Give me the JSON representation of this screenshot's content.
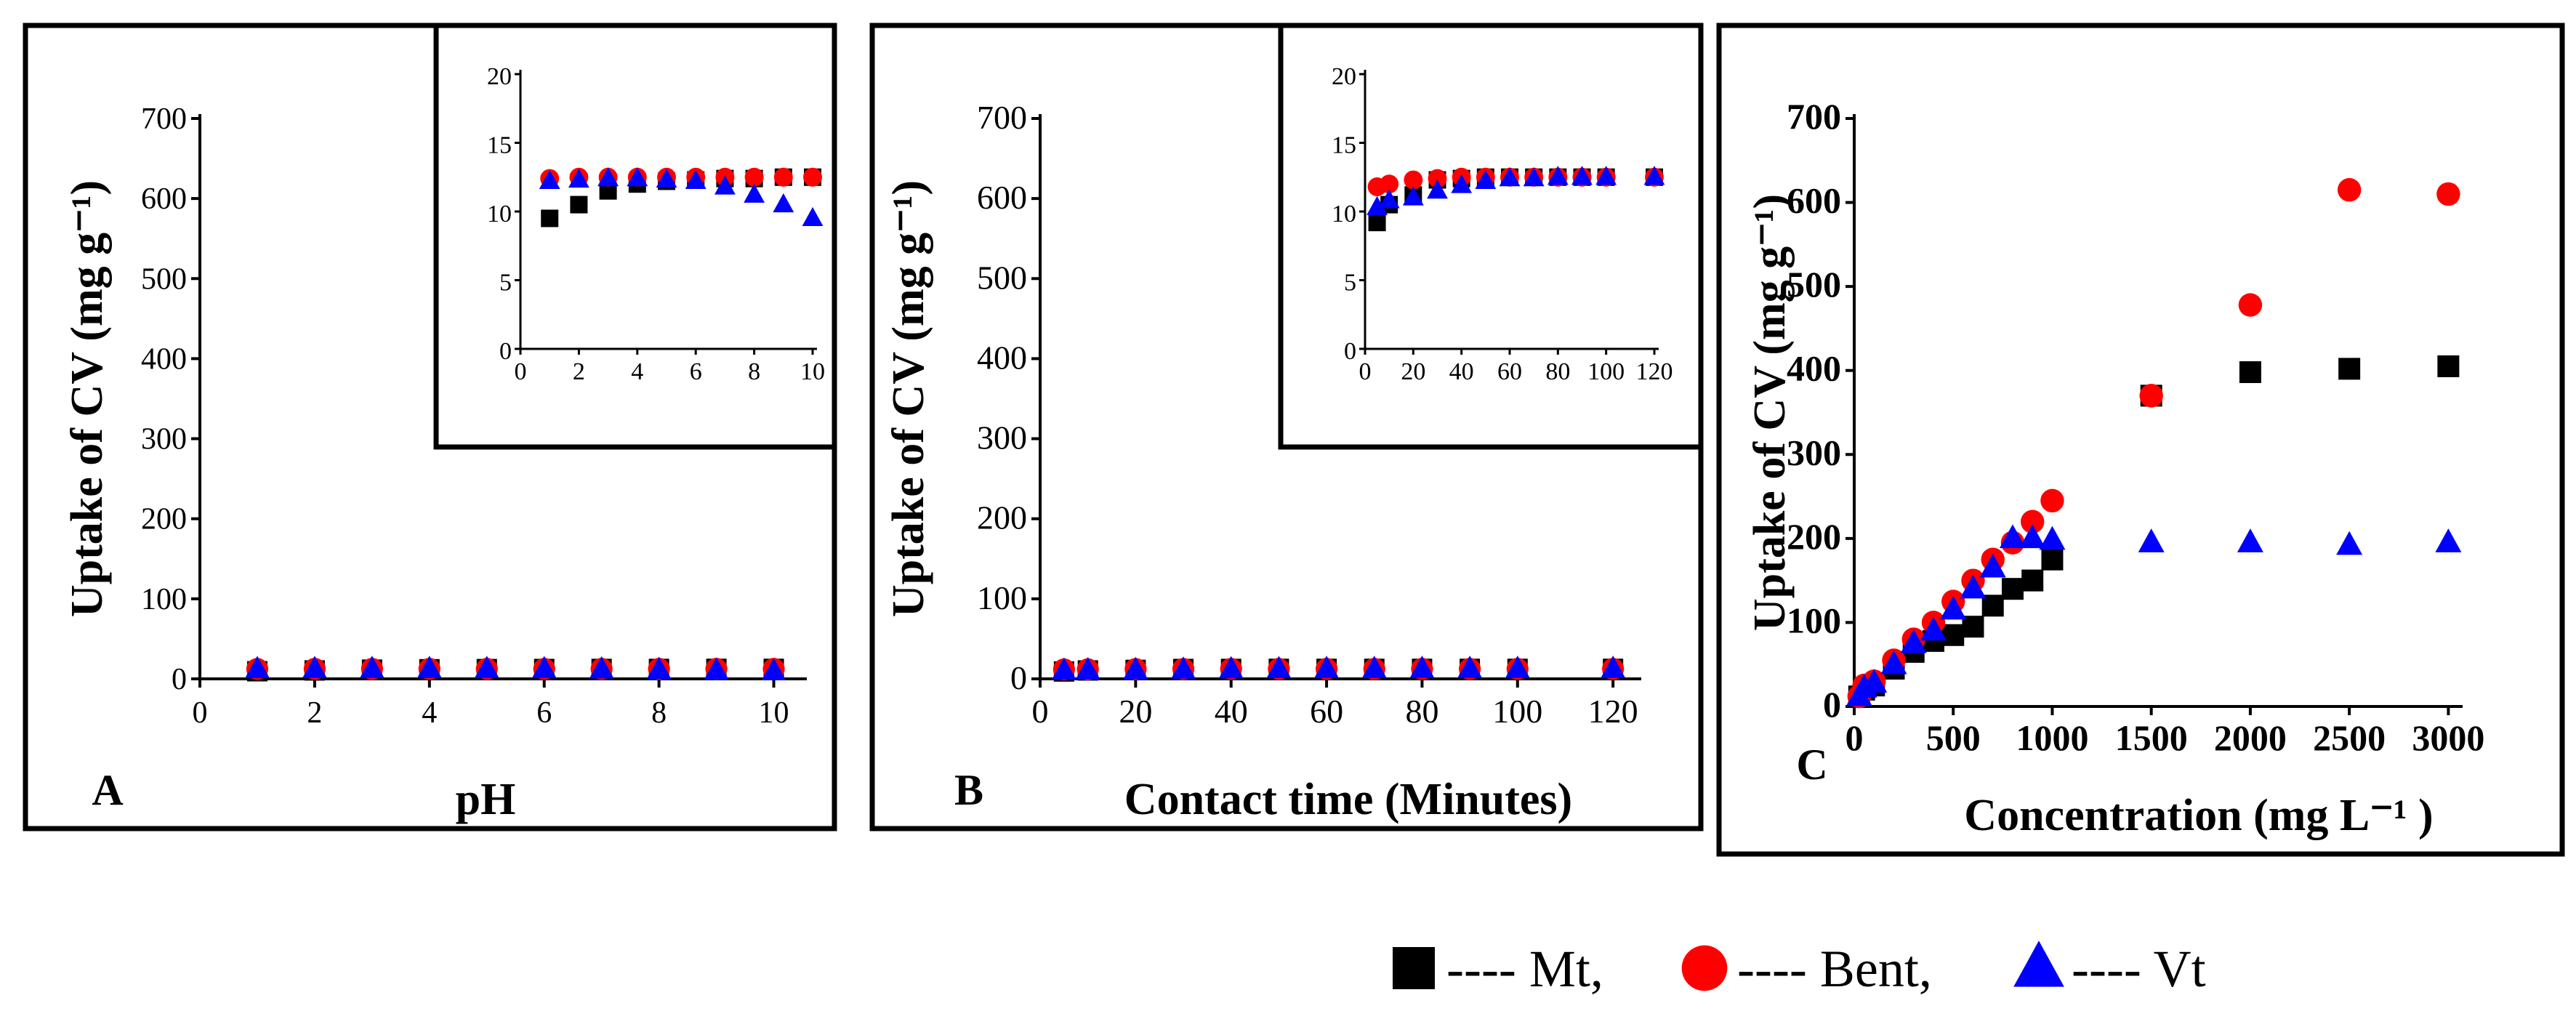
{
  "figure": {
    "legend": [
      {
        "symbol": "square",
        "color": "#000000",
        "label": "---- Mt,"
      },
      {
        "symbol": "circle",
        "color": "#ff0000",
        "label": "---- Bent,"
      },
      {
        "symbol": "triangle",
        "color": "#0000ff",
        "label": "---- Vt"
      }
    ]
  },
  "chart_data": [
    {
      "id": "A",
      "panel_label": "A",
      "type": "scatter",
      "xlabel": "pH",
      "ylabel": "Uptake of CV (mg g⁻¹)",
      "xlim": [
        0,
        10.5
      ],
      "ylim": [
        0,
        700
      ],
      "xticks": [
        0,
        2,
        4,
        6,
        8,
        10
      ],
      "yticks": [
        0,
        100,
        200,
        300,
        400,
        500,
        600,
        700
      ],
      "x": [
        1,
        2,
        3,
        4,
        5,
        6,
        7,
        8,
        9,
        10
      ],
      "series": [
        {
          "name": "Mt",
          "marker": "square",
          "color": "#000000",
          "values": [
            9.5,
            10.5,
            11.5,
            12.0,
            12.2,
            12.3,
            12.4,
            12.4,
            12.5,
            12.5
          ]
        },
        {
          "name": "Bent",
          "marker": "circle",
          "color": "#ff0000",
          "values": [
            12.4,
            12.5,
            12.5,
            12.5,
            12.5,
            12.5,
            12.5,
            12.5,
            12.5,
            12.5
          ]
        },
        {
          "name": "Vt",
          "marker": "triangle",
          "color": "#0000ff",
          "values": [
            12.2,
            12.3,
            12.4,
            12.4,
            12.3,
            12.2,
            11.8,
            11.2,
            10.5,
            9.5
          ]
        }
      ],
      "inset": {
        "xlim": [
          0,
          10
        ],
        "ylim": [
          0,
          20
        ],
        "xticks": [
          0,
          2,
          4,
          6,
          8,
          10
        ],
        "yticks": [
          0,
          5,
          10,
          15,
          20
        ]
      }
    },
    {
      "id": "B",
      "panel_label": "B",
      "type": "scatter",
      "xlabel": "Contact time (Minutes)",
      "ylabel": "Uptake of CV (mg g⁻¹)",
      "xlim": [
        0,
        125
      ],
      "ylim": [
        0,
        700
      ],
      "xticks": [
        0,
        20,
        40,
        60,
        80,
        100,
        120
      ],
      "yticks": [
        0,
        100,
        200,
        300,
        400,
        500,
        600,
        700
      ],
      "x": [
        5,
        10,
        20,
        30,
        40,
        50,
        60,
        70,
        80,
        90,
        100,
        120
      ],
      "series": [
        {
          "name": "Mt",
          "marker": "square",
          "color": "#000000",
          "values": [
            9.2,
            10.5,
            11.2,
            12.3,
            12.4,
            12.5,
            12.5,
            12.5,
            12.5,
            12.5,
            12.5,
            12.5
          ]
        },
        {
          "name": "Bent",
          "marker": "circle",
          "color": "#ff0000",
          "values": [
            11.8,
            12.0,
            12.3,
            12.4,
            12.5,
            12.5,
            12.5,
            12.5,
            12.5,
            12.5,
            12.5,
            12.5
          ]
        },
        {
          "name": "Vt",
          "marker": "triangle",
          "color": "#0000ff",
          "values": [
            10.3,
            10.8,
            11.0,
            11.5,
            11.9,
            12.2,
            12.4,
            12.4,
            12.5,
            12.5,
            12.5,
            12.5
          ]
        }
      ],
      "inset": {
        "xlim": [
          0,
          120
        ],
        "ylim": [
          0,
          20
        ],
        "xticks": [
          0,
          20,
          40,
          60,
          80,
          100,
          120
        ],
        "yticks": [
          0,
          5,
          10,
          15,
          20
        ]
      }
    },
    {
      "id": "C",
      "panel_label": "C",
      "type": "scatter",
      "xlabel": "Concentration (mg L⁻¹ )",
      "ylabel": "Uptake of CV (mg g⁻¹)",
      "xlim": [
        0,
        3050
      ],
      "ylim": [
        0,
        700
      ],
      "xticks": [
        0,
        500,
        1000,
        1500,
        2000,
        2500,
        3000
      ],
      "yticks": [
        0,
        100,
        200,
        300,
        400,
        500,
        600,
        700
      ],
      "series": [
        {
          "name": "Mt",
          "marker": "square",
          "color": "#000000",
          "x": [
            25,
            50,
            100,
            200,
            300,
            400,
            500,
            600,
            700,
            800,
            900,
            1000,
            1500,
            2000,
            2500,
            3000
          ],
          "values": [
            12,
            20,
            25,
            45,
            65,
            78,
            85,
            95,
            120,
            140,
            150,
            175,
            370,
            398,
            402,
            405
          ]
        },
        {
          "name": "Bent",
          "marker": "circle",
          "color": "#ff0000",
          "x": [
            25,
            50,
            100,
            200,
            300,
            400,
            500,
            600,
            700,
            800,
            900,
            1000,
            1500,
            2000,
            2500,
            3000
          ],
          "values": [
            12,
            25,
            30,
            55,
            80,
            100,
            125,
            150,
            175,
            195,
            220,
            245,
            370,
            478,
            615,
            610
          ]
        },
        {
          "name": "Vt",
          "marker": "triangle",
          "color": "#0000ff",
          "x": [
            25,
            50,
            100,
            200,
            300,
            400,
            500,
            600,
            700,
            800,
            900,
            1000,
            1500,
            2000,
            2500,
            3000
          ],
          "values": [
            12,
            22,
            28,
            50,
            75,
            90,
            115,
            140,
            165,
            200,
            200,
            198,
            195,
            195,
            192,
            195
          ]
        }
      ]
    }
  ]
}
